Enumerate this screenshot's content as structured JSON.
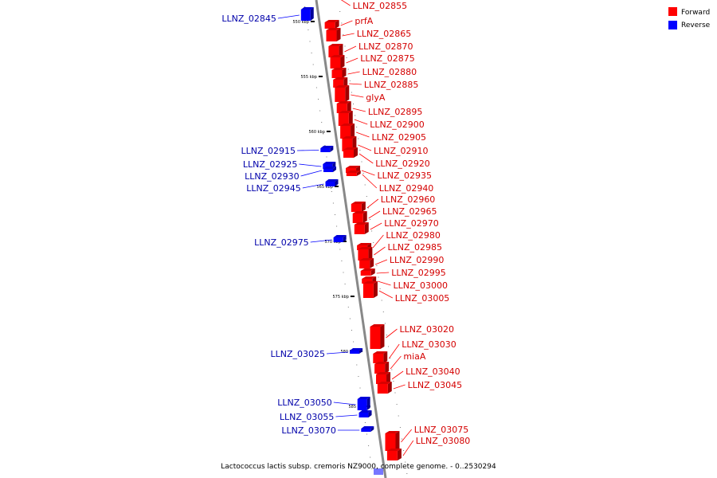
{
  "colors": {
    "forward": "#ff0000",
    "reverse": "#0000ff",
    "backbone": "#888888",
    "label_forward": "#d40000",
    "label_reverse": "#0000aa"
  },
  "legend": {
    "forward_label": "Forward",
    "reverse_label": "Reverse"
  },
  "caption": "Lactococcus lactis subsp. cremoris NZ9000, complete genome. - 0..2530294",
  "ticks": [
    "550 kbp",
    "555 kbp",
    "560 kbp",
    "565 kbp",
    "570 kbp",
    "575 kbp",
    "580 kbp",
    "585 kbp"
  ],
  "forward_genes": [
    "LLNZ_02855",
    "prfA",
    "LLNZ_02865",
    "LLNZ_02870",
    "LLNZ_02875",
    "LLNZ_02880",
    "LLNZ_02885",
    "glyA",
    "LLNZ_02895",
    "LLNZ_02900",
    "LLNZ_02905",
    "LLNZ_02910",
    "LLNZ_02920",
    "LLNZ_02935",
    "LLNZ_02940",
    "LLNZ_02960",
    "LLNZ_02965",
    "LLNZ_02970",
    "LLNZ_02980",
    "LLNZ_02985",
    "LLNZ_02990",
    "LLNZ_02995",
    "LLNZ_03000",
    "LLNZ_03005",
    "LLNZ_03020",
    "LLNZ_03030",
    "miaA",
    "LLNZ_03040",
    "LLNZ_03045",
    "LLNZ_03075",
    "LLNZ_03080"
  ],
  "reverse_genes": [
    "LLNZ_02845",
    "LLNZ_02915",
    "LLNZ_02925",
    "LLNZ_02930",
    "LLNZ_02945",
    "LLNZ_02975",
    "LLNZ_03025",
    "LLNZ_03050",
    "LLNZ_03055",
    "LLNZ_03070"
  ]
}
